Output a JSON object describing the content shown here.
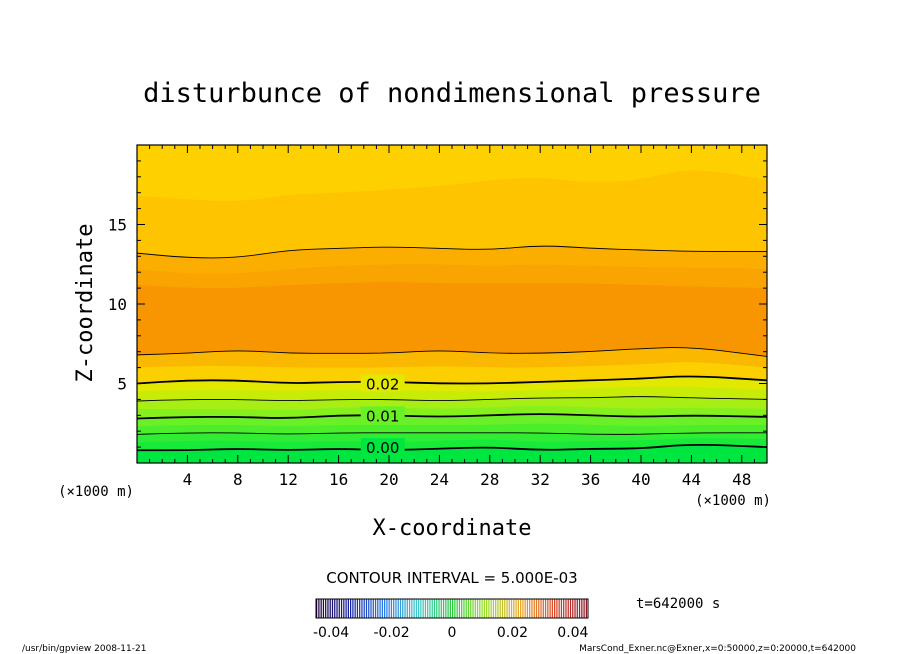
{
  "chart_data": {
    "type": "contour",
    "title": "disturbunce of nondimensional pressure",
    "xlabel": "X-coordinate",
    "ylabel": "Z-coordinate",
    "x_unit": "(×1000 m)",
    "y_unit": "(×1000 m)",
    "xlim": [
      0,
      50
    ],
    "ylim": [
      0,
      20
    ],
    "x_ticks": [
      4,
      8,
      12,
      16,
      20,
      24,
      28,
      32,
      36,
      40,
      44,
      48
    ],
    "y_ticks": [
      5,
      10,
      15
    ],
    "contour_interval_text": "CONTOUR INTERVAL = 5.000E-03",
    "time_label": "t=642000  s",
    "colorbar_ticks": [
      "-0.04",
      "-0.02",
      "0",
      "0.02",
      "0.04"
    ],
    "colorbar_range": [
      -0.045,
      0.045
    ],
    "contour_labels": [
      {
        "text": "0.02",
        "x": 19.5,
        "z": 5.0
      },
      {
        "text": "0.01",
        "x": 19.5,
        "z": 3.0
      },
      {
        "text": "0.00",
        "x": 19.5,
        "z": 1.0
      }
    ],
    "contour_lines": [
      {
        "level": 0.0,
        "bold": true,
        "z": [
          0.8,
          0.8,
          0.9,
          0.8,
          0.9,
          0.8,
          0.9,
          1.0,
          0.8,
          0.9,
          0.9,
          1.2,
          1.0
        ]
      },
      {
        "level": 0.005,
        "bold": false,
        "z": [
          1.8,
          1.9,
          1.9,
          1.8,
          1.9,
          1.9,
          1.9,
          1.9,
          1.9,
          1.8,
          1.8,
          1.9,
          1.9
        ]
      },
      {
        "level": 0.01,
        "bold": true,
        "z": [
          2.8,
          2.9,
          2.9,
          2.8,
          3.0,
          3.0,
          2.9,
          3.0,
          3.1,
          3.0,
          2.9,
          3.0,
          2.9
        ]
      },
      {
        "level": 0.015,
        "bold": false,
        "z": [
          3.9,
          4.0,
          4.0,
          3.9,
          4.0,
          4.0,
          3.9,
          4.0,
          4.1,
          4.1,
          4.2,
          4.1,
          4.0
        ]
      },
      {
        "level": 0.02,
        "bold": true,
        "z": [
          5.0,
          5.2,
          5.2,
          5.0,
          5.1,
          5.1,
          5.0,
          5.0,
          5.1,
          5.2,
          5.3,
          5.5,
          5.2
        ]
      },
      {
        "level": 0.025,
        "bold": false,
        "z": [
          6.8,
          6.9,
          7.1,
          6.9,
          6.9,
          6.9,
          7.1,
          6.9,
          6.9,
          7.0,
          7.2,
          7.3,
          6.7
        ]
      },
      {
        "level": 0.03,
        "bold": false,
        "z": [
          13.2,
          12.9,
          12.9,
          13.4,
          13.5,
          13.6,
          13.5,
          13.4,
          13.7,
          13.5,
          13.4,
          13.3,
          13.3
        ]
      }
    ],
    "x_samples": [
      0,
      4,
      8,
      12,
      16,
      20,
      24,
      28,
      32,
      36,
      40,
      44,
      50
    ],
    "fill_bands": [
      {
        "color": "#00e640",
        "between": [
          -1,
          0
        ]
      },
      {
        "color": "#22ee33",
        "between": [
          0,
          1
        ]
      },
      {
        "color": "#55f02a",
        "between": [
          1,
          2
        ]
      },
      {
        "color": "#88f020",
        "between": [
          2,
          3
        ]
      },
      {
        "color": "#b8ef10",
        "between": [
          3,
          4
        ]
      },
      {
        "color": "#e8e800",
        "between": [
          4,
          5
        ]
      },
      {
        "color": "#f7b000",
        "between": [
          5,
          6
        ]
      },
      {
        "color": "#f8a000",
        "between": [
          6,
          7
        ]
      },
      {
        "color": "#fbc000",
        "between": [
          7,
          8
        ]
      }
    ],
    "extra_bands_note": "Bands above 13.3 km shade to yellow; region between 6.8 and 13.3 km is darker orange."
  },
  "footer": {
    "left": "/usr/bin/gpview   2008-11-21",
    "right": "MarsCond_Exner.nc@Exner,x=0:50000,z=0:20000,t=642000"
  }
}
